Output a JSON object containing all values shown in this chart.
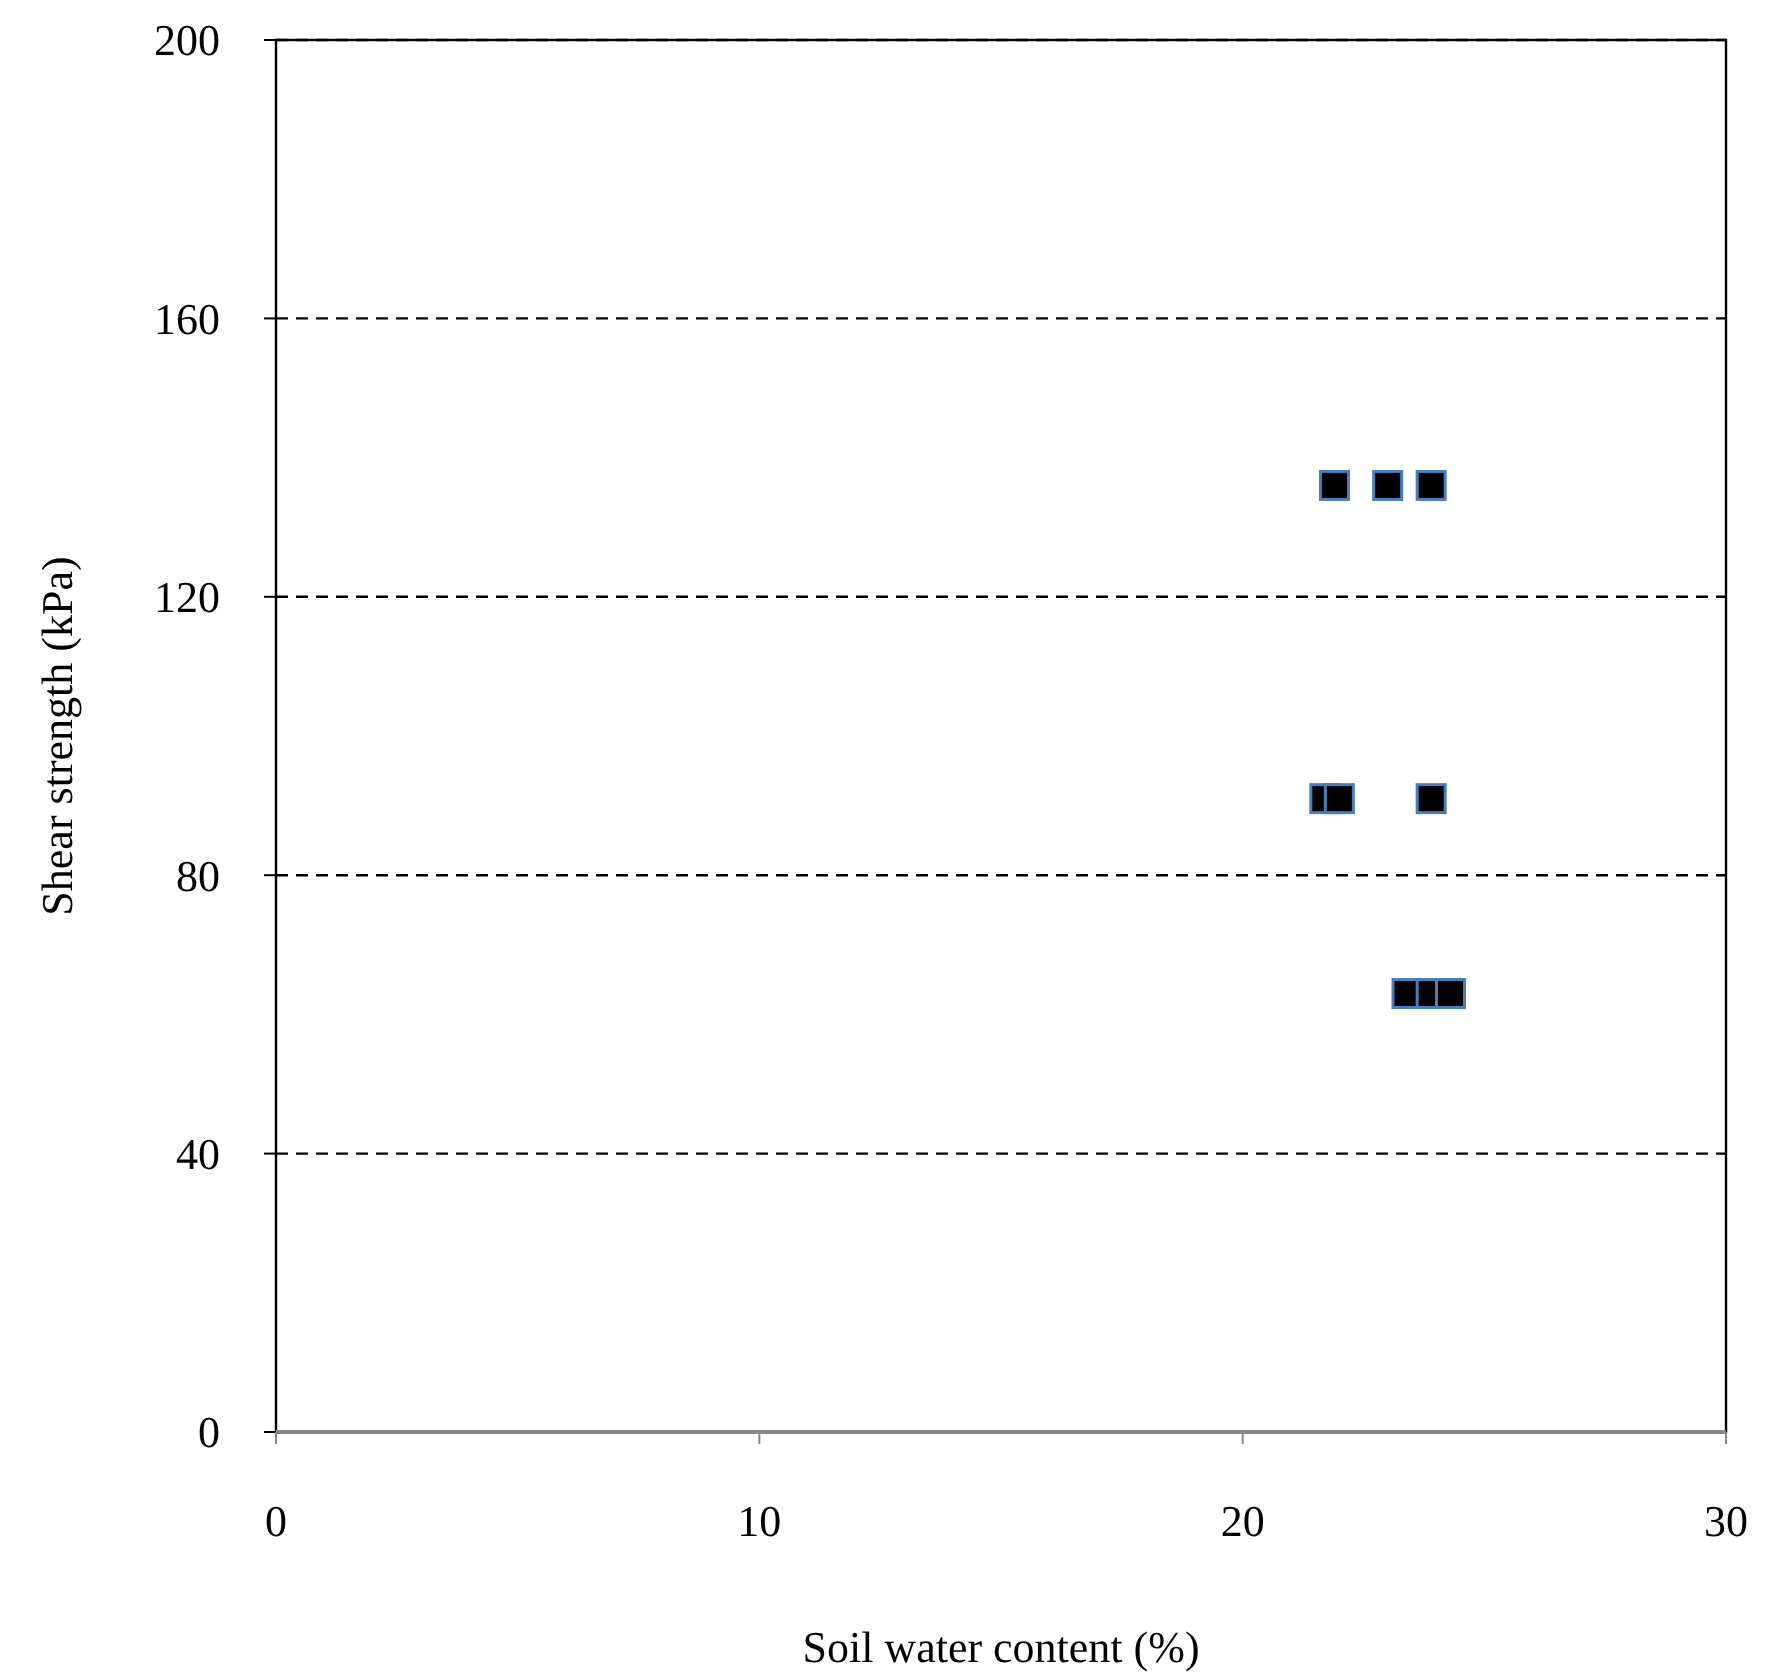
{
  "chart_data": {
    "type": "scatter",
    "xlabel": "Soil water content (%)",
    "ylabel": "Shear strength (kPa)",
    "x": [
      21.9,
      23.0,
      23.9,
      21.7,
      22.0,
      23.9,
      23.4,
      23.9,
      24.3
    ],
    "series": [
      {
        "color": "#000000",
        "values": [
          136,
          136,
          136,
          91,
          91,
          91,
          63,
          63,
          63
        ]
      }
    ],
    "xlim": [
      0,
      30
    ],
    "xticks": [
      0,
      10,
      20,
      30
    ],
    "ylim": [
      0,
      200
    ],
    "yticks": [
      0,
      40,
      80,
      120,
      160,
      200
    ],
    "grid": "y",
    "line_style": "dashed",
    "marker": "square"
  }
}
